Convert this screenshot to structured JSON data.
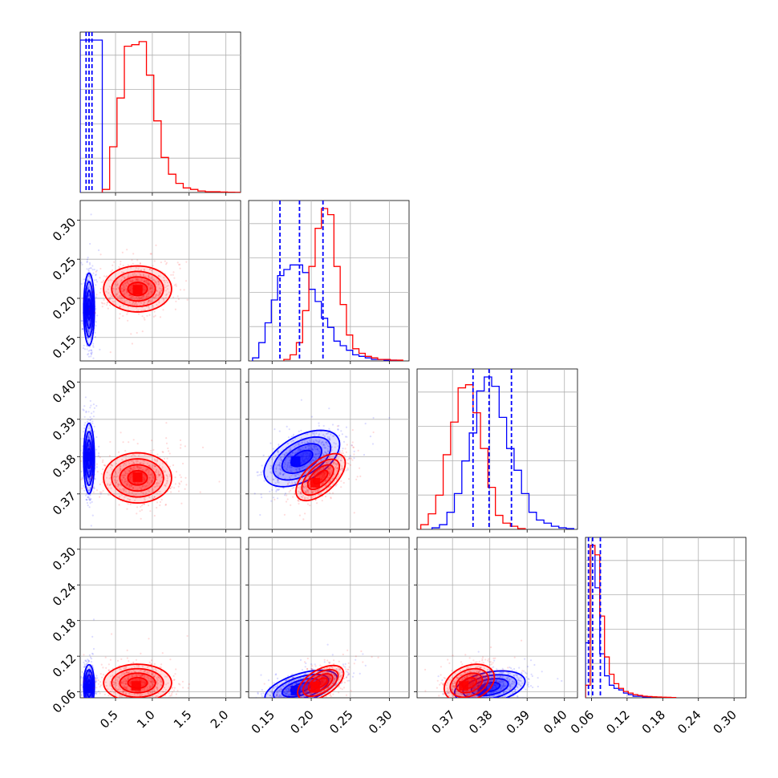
{
  "chart_data": {
    "type": "corner",
    "series": [
      {
        "name": "",
        "color": "#0000ff"
      },
      {
        "name": "",
        "color": "#ff0000"
      }
    ],
    "quantile_line_color": "#0000ff",
    "grid": true,
    "variables": [
      {
        "range": [
          0.02,
          2.2
        ],
        "ticks": [
          0.5,
          1.0,
          1.5,
          2.0
        ],
        "tick_labels": [
          "0.5",
          "1.0",
          "1.5",
          "2.0"
        ]
      },
      {
        "range": [
          0.12,
          0.325
        ],
        "ticks": [
          0.15,
          0.2,
          0.25,
          0.3
        ],
        "tick_labels": [
          "0.15",
          "0.20",
          "0.25",
          "0.30"
        ]
      },
      {
        "range": [
          0.3605,
          0.4035
        ],
        "ticks": [
          0.37,
          0.38,
          0.39,
          0.4
        ],
        "tick_labels": [
          "0.37",
          "0.38",
          "0.39",
          "0.40"
        ]
      },
      {
        "range": [
          0.05,
          0.32
        ],
        "ticks": [
          0.06,
          0.12,
          0.18,
          0.24,
          0.3
        ],
        "tick_labels": [
          "0.06",
          "0.12",
          "0.18",
          "0.24",
          "0.30"
        ]
      }
    ],
    "marginals": [
      {
        "quantiles": [
          0.1,
          0.14,
          0.18
        ],
        "blue": {
          "edges": [
            0.02,
            0.32
          ],
          "counts": [
            1.0
          ]
        },
        "red": {
          "edges": [
            0.32,
            0.42,
            0.52,
            0.62,
            0.72,
            0.82,
            0.92,
            1.02,
            1.12,
            1.22,
            1.32,
            1.42,
            1.52,
            1.62,
            1.72,
            1.82,
            1.92,
            2.02,
            2.12,
            2.2
          ],
          "counts": [
            0.02,
            0.3,
            0.62,
            0.96,
            0.97,
            0.99,
            0.77,
            0.47,
            0.23,
            0.12,
            0.06,
            0.03,
            0.02,
            0.01,
            0.005,
            0.005,
            0.003,
            0.002,
            0.001
          ]
        }
      },
      {
        "quantiles": [
          0.16,
          0.185,
          0.215
        ],
        "blue": {
          "edges": [
            0.125,
            0.133,
            0.141,
            0.149,
            0.157,
            0.165,
            0.173,
            0.181,
            0.189,
            0.197,
            0.205,
            0.213,
            0.221,
            0.229,
            0.237,
            0.245,
            0.253,
            0.261,
            0.269,
            0.277,
            0.285,
            0.293,
            0.301,
            0.309
          ],
          "counts": [
            0.02,
            0.12,
            0.25,
            0.4,
            0.56,
            0.6,
            0.63,
            0.63,
            0.58,
            0.47,
            0.39,
            0.28,
            0.22,
            0.13,
            0.1,
            0.07,
            0.04,
            0.03,
            0.02,
            0.01,
            0.01,
            0.005,
            0.005
          ]
        },
        "red": {
          "edges": [
            0.165,
            0.173,
            0.181,
            0.189,
            0.197,
            0.205,
            0.213,
            0.221,
            0.229,
            0.237,
            0.245,
            0.253,
            0.261,
            0.269,
            0.277,
            0.285,
            0.293,
            0.301,
            0.309,
            0.317
          ],
          "counts": [
            0.01,
            0.04,
            0.12,
            0.33,
            0.62,
            0.87,
            1.0,
            0.96,
            0.62,
            0.37,
            0.17,
            0.08,
            0.05,
            0.03,
            0.02,
            0.01,
            0.01,
            0.005,
            0.005
          ]
        }
      },
      {
        "quantiles": [
          0.3755,
          0.3798,
          0.3858
        ],
        "blue": {
          "edges": [
            0.3645,
            0.3665,
            0.3685,
            0.3705,
            0.3725,
            0.3745,
            0.3765,
            0.3785,
            0.3805,
            0.3825,
            0.3845,
            0.3865,
            0.3885,
            0.3905,
            0.3925,
            0.3945,
            0.3965,
            0.3985,
            0.4005,
            0.4025
          ],
          "counts": [
            0.01,
            0.03,
            0.11,
            0.23,
            0.44,
            0.62,
            0.89,
            0.98,
            0.92,
            0.72,
            0.52,
            0.38,
            0.23,
            0.11,
            0.06,
            0.04,
            0.02,
            0.01,
            0.005
          ]
        },
        "red": {
          "edges": [
            0.3615,
            0.3635,
            0.3655,
            0.3675,
            0.3695,
            0.3715,
            0.3735,
            0.3755,
            0.3775,
            0.3795,
            0.3815,
            0.3835,
            0.3855,
            0.3875,
            0.3895
          ],
          "counts": [
            0.03,
            0.1,
            0.22,
            0.48,
            0.69,
            0.91,
            0.93,
            0.75,
            0.52,
            0.27,
            0.09,
            0.04,
            0.02,
            0.005
          ]
        }
      },
      {
        "quantiles": [
          0.055,
          0.062,
          0.075
        ],
        "blue": {
          "edges": [
            0.05,
            0.058,
            0.066,
            0.074,
            0.082,
            0.09,
            0.098,
            0.106,
            0.114,
            0.122,
            0.13,
            0.138,
            0.146,
            0.154,
            0.16
          ],
          "counts": [
            0.35,
            0.97,
            0.7,
            0.28,
            0.14,
            0.08,
            0.06,
            0.05,
            0.03,
            0.02,
            0.01,
            0.01,
            0.005,
            0.005
          ]
        },
        "red": {
          "edges": [
            0.05,
            0.058,
            0.066,
            0.074,
            0.082,
            0.09,
            0.098,
            0.106,
            0.114,
            0.122,
            0.13,
            0.138,
            0.146,
            0.154,
            0.162,
            0.17,
            0.178,
            0.186,
            0.194,
            0.202
          ],
          "counts": [
            0.08,
            0.97,
            0.91,
            0.52,
            0.26,
            0.15,
            0.09,
            0.06,
            0.04,
            0.03,
            0.02,
            0.015,
            0.01,
            0.008,
            0.006,
            0.005,
            0.004,
            0.003,
            0.002
          ]
        }
      }
    ],
    "pairs": [
      {
        "row": 1,
        "col": 0,
        "blue": {
          "center": [
            0.14,
            0.186
          ],
          "spread": [
            0.035,
            0.022
          ],
          "corr": 0.0,
          "peak": [
            0.14,
            0.185
          ]
        },
        "red": {
          "center": [
            0.8,
            0.212
          ],
          "spread": [
            0.22,
            0.014
          ],
          "corr": 0.0,
          "peak": [
            0.8,
            0.211
          ]
        }
      },
      {
        "row": 2,
        "col": 0,
        "blue": {
          "center": [
            0.14,
            0.3795
          ],
          "spread": [
            0.035,
            0.0045
          ],
          "corr": 0.0,
          "peak": [
            0.14,
            0.38
          ]
        },
        "red": {
          "center": [
            0.8,
            0.3743
          ],
          "spread": [
            0.22,
            0.0032
          ],
          "corr": 0.0,
          "peak": [
            0.8,
            0.3745
          ]
        }
      },
      {
        "row": 2,
        "col": 1,
        "blue": {
          "center": [
            0.188,
            0.3795
          ],
          "spread": [
            0.023,
            0.0036
          ],
          "corr": 0.5,
          "peak": [
            0.18,
            0.3788
          ]
        },
        "red": {
          "center": [
            0.212,
            0.3745
          ],
          "spread": [
            0.015,
            0.003
          ],
          "corr": 0.6,
          "peak": [
            0.205,
            0.373
          ]
        }
      },
      {
        "row": 3,
        "col": 0,
        "blue": {
          "center": [
            0.14,
            0.07
          ],
          "spread": [
            0.035,
            0.017
          ],
          "corr": 0.0,
          "peak": [
            0.14,
            0.066
          ]
        },
        "red": {
          "center": [
            0.8,
            0.075
          ],
          "spread": [
            0.22,
            0.015
          ],
          "corr": 0.0,
          "peak": [
            0.78,
            0.07
          ]
        }
      },
      {
        "row": 3,
        "col": 1,
        "blue": {
          "center": [
            0.187,
            0.067
          ],
          "spread": [
            0.022,
            0.014
          ],
          "corr": 0.55,
          "peak": [
            0.18,
            0.062
          ]
        },
        "red": {
          "center": [
            0.212,
            0.075
          ],
          "spread": [
            0.014,
            0.014
          ],
          "corr": 0.55,
          "peak": [
            0.205,
            0.069
          ]
        }
      },
      {
        "row": 3,
        "col": 2,
        "blue": {
          "center": [
            0.38,
            0.068
          ],
          "spread": [
            0.0045,
            0.013
          ],
          "corr": 0.35,
          "peak": [
            0.378,
            0.063
          ]
        },
        "red": {
          "center": [
            0.3745,
            0.075
          ],
          "spread": [
            0.0032,
            0.015
          ],
          "corr": 0.3,
          "peak": [
            0.373,
            0.07
          ]
        }
      }
    ]
  }
}
